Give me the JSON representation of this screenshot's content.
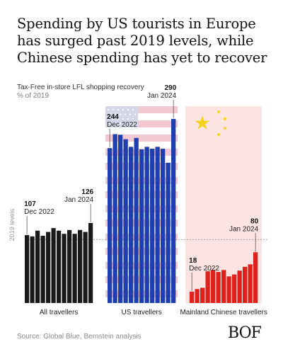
{
  "title": "Spending by US tourists in Europe has surged past 2019 levels, while Chinese spending has yet to recover",
  "subtitle": "Tax-Free in-store LFL shopping recovery",
  "unit": "% of 2019",
  "source": "Source: Global Blue, Bernstein analysis",
  "logo": "BOF",
  "colors": {
    "all": "#1a1a1a",
    "us": "#1f3fb0",
    "china": "#e0201b",
    "reference_line": "#9a9a9a"
  },
  "chart_data": {
    "type": "bar",
    "reference_line": {
      "value": 100,
      "label": "2019 levels"
    },
    "ylim": [
      0,
      310
    ],
    "grid": false,
    "series": [
      {
        "name": "All travellers",
        "color": "#1a1a1a",
        "values": [
          107,
          105,
          114,
          106,
          112,
          118,
          114,
          109,
          115,
          109,
          115,
          112,
          126
        ],
        "annotations": [
          {
            "index": 0,
            "value": "107",
            "label": "Dec 2022"
          },
          {
            "index": 12,
            "value": "126",
            "label": "Jan 2024"
          }
        ]
      },
      {
        "name": "US travellers",
        "color": "#1f3fb0",
        "values": [
          244,
          266,
          265,
          258,
          246,
          260,
          242,
          246,
          243,
          246,
          243,
          221,
          290
        ],
        "annotations": [
          {
            "index": 0,
            "value": "244",
            "label": "Dec 2022"
          },
          {
            "index": 12,
            "value": "290",
            "label": "Jan 2024"
          }
        ]
      },
      {
        "name": "Mainland Chinese travellers",
        "color": "#e0201b",
        "values": [
          18,
          22,
          24,
          50,
          52,
          49,
          52,
          42,
          45,
          51,
          57,
          61,
          80
        ],
        "annotations": [
          {
            "index": 0,
            "value": "18",
            "label": "Dec 2022"
          },
          {
            "index": 12,
            "value": "80",
            "label": "Jan 2024"
          }
        ]
      }
    ]
  }
}
